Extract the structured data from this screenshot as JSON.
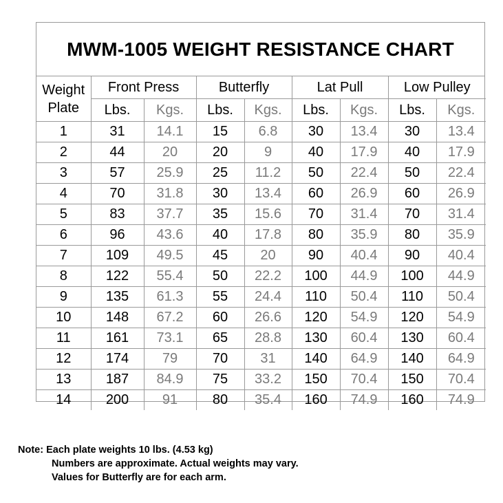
{
  "title": "MWM-1005 WEIGHT RESISTANCE CHART",
  "headers": {
    "weight_plate": [
      "Weight",
      "Plate"
    ],
    "groups": [
      "Front Press",
      "Butterfly",
      "Lat Pull",
      "Low Pulley"
    ],
    "lbs": "Lbs.",
    "kgs": "Kgs."
  },
  "rows": [
    {
      "plate": "1",
      "fp_lbs": "31",
      "fp_kgs": "14.1",
      "bf_lbs": "15",
      "bf_kgs": "6.8",
      "lp_lbs": "30",
      "lp_kgs": "13.4",
      "lw_lbs": "30",
      "lw_kgs": "13.4"
    },
    {
      "plate": "2",
      "fp_lbs": "44",
      "fp_kgs": "20",
      "bf_lbs": "20",
      "bf_kgs": "9",
      "lp_lbs": "40",
      "lp_kgs": "17.9",
      "lw_lbs": "40",
      "lw_kgs": "17.9"
    },
    {
      "plate": "3",
      "fp_lbs": "57",
      "fp_kgs": "25.9",
      "bf_lbs": "25",
      "bf_kgs": "11.2",
      "lp_lbs": "50",
      "lp_kgs": "22.4",
      "lw_lbs": "50",
      "lw_kgs": "22.4"
    },
    {
      "plate": "4",
      "fp_lbs": "70",
      "fp_kgs": "31.8",
      "bf_lbs": "30",
      "bf_kgs": "13.4",
      "lp_lbs": "60",
      "lp_kgs": "26.9",
      "lw_lbs": "60",
      "lw_kgs": "26.9"
    },
    {
      "plate": "5",
      "fp_lbs": "83",
      "fp_kgs": "37.7",
      "bf_lbs": "35",
      "bf_kgs": "15.6",
      "lp_lbs": "70",
      "lp_kgs": "31.4",
      "lw_lbs": "70",
      "lw_kgs": "31.4"
    },
    {
      "plate": "6",
      "fp_lbs": "96",
      "fp_kgs": "43.6",
      "bf_lbs": "40",
      "bf_kgs": "17.8",
      "lp_lbs": "80",
      "lp_kgs": "35.9",
      "lw_lbs": "80",
      "lw_kgs": "35.9"
    },
    {
      "plate": "7",
      "fp_lbs": "109",
      "fp_kgs": "49.5",
      "bf_lbs": "45",
      "bf_kgs": "20",
      "lp_lbs": "90",
      "lp_kgs": "40.4",
      "lw_lbs": "90",
      "lw_kgs": "40.4"
    },
    {
      "plate": "8",
      "fp_lbs": "122",
      "fp_kgs": "55.4",
      "bf_lbs": "50",
      "bf_kgs": "22.2",
      "lp_lbs": "100",
      "lp_kgs": "44.9",
      "lw_lbs": "100",
      "lw_kgs": "44.9"
    },
    {
      "plate": "9",
      "fp_lbs": "135",
      "fp_kgs": "61.3",
      "bf_lbs": "55",
      "bf_kgs": "24.4",
      "lp_lbs": "110",
      "lp_kgs": "50.4",
      "lw_lbs": "110",
      "lw_kgs": "50.4"
    },
    {
      "plate": "10",
      "fp_lbs": "148",
      "fp_kgs": "67.2",
      "bf_lbs": "60",
      "bf_kgs": "26.6",
      "lp_lbs": "120",
      "lp_kgs": "54.9",
      "lw_lbs": "120",
      "lw_kgs": "54.9"
    },
    {
      "plate": "11",
      "fp_lbs": "161",
      "fp_kgs": "73.1",
      "bf_lbs": "65",
      "bf_kgs": "28.8",
      "lp_lbs": "130",
      "lp_kgs": "60.4",
      "lw_lbs": "130",
      "lw_kgs": "60.4"
    },
    {
      "plate": "12",
      "fp_lbs": "174",
      "fp_kgs": "79",
      "bf_lbs": "70",
      "bf_kgs": "31",
      "lp_lbs": "140",
      "lp_kgs": "64.9",
      "lw_lbs": "140",
      "lw_kgs": "64.9"
    },
    {
      "plate": "13",
      "fp_lbs": "187",
      "fp_kgs": "84.9",
      "bf_lbs": "75",
      "bf_kgs": "33.2",
      "lp_lbs": "150",
      "lp_kgs": "70.4",
      "lw_lbs": "150",
      "lw_kgs": "70.4"
    },
    {
      "plate": "14",
      "fp_lbs": "200",
      "fp_kgs": "91",
      "bf_lbs": "80",
      "bf_kgs": "35.4",
      "lp_lbs": "160",
      "lp_kgs": "74.9",
      "lw_lbs": "160",
      "lw_kgs": "74.9"
    }
  ],
  "note": {
    "line1": "Note: Each plate weights 10 lbs. (4.53 kg)",
    "line2": "Numbers are approximate. Actual weights may vary.",
    "line3": "Values for Butterfly are for each arm."
  },
  "colors": {
    "kgs_text": "#7a7a7a",
    "grid": "#999999"
  }
}
